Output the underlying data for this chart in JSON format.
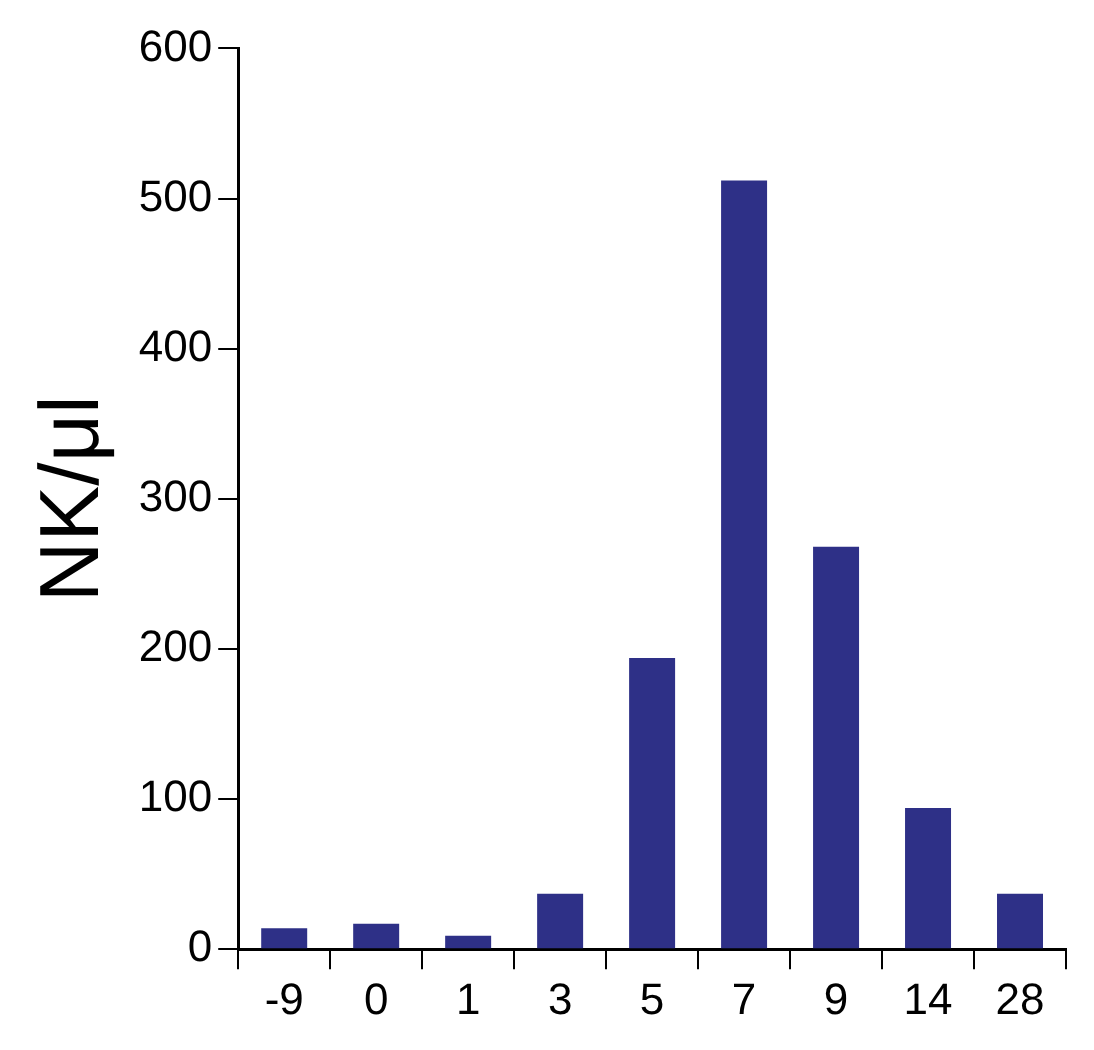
{
  "chart_data": {
    "type": "bar",
    "ylabel": "NK/μl",
    "categories": [
      "-9",
      "0",
      "1",
      "3",
      "5",
      "7",
      "9",
      "14",
      "28"
    ],
    "values": [
      14,
      17,
      9,
      37,
      194,
      512,
      268,
      94,
      37
    ],
    "color": "#2e3087",
    "ylim": [
      0,
      600
    ],
    "yticks": [
      0,
      100,
      200,
      300,
      400,
      500,
      600
    ],
    "grid": false,
    "legend": false
  }
}
